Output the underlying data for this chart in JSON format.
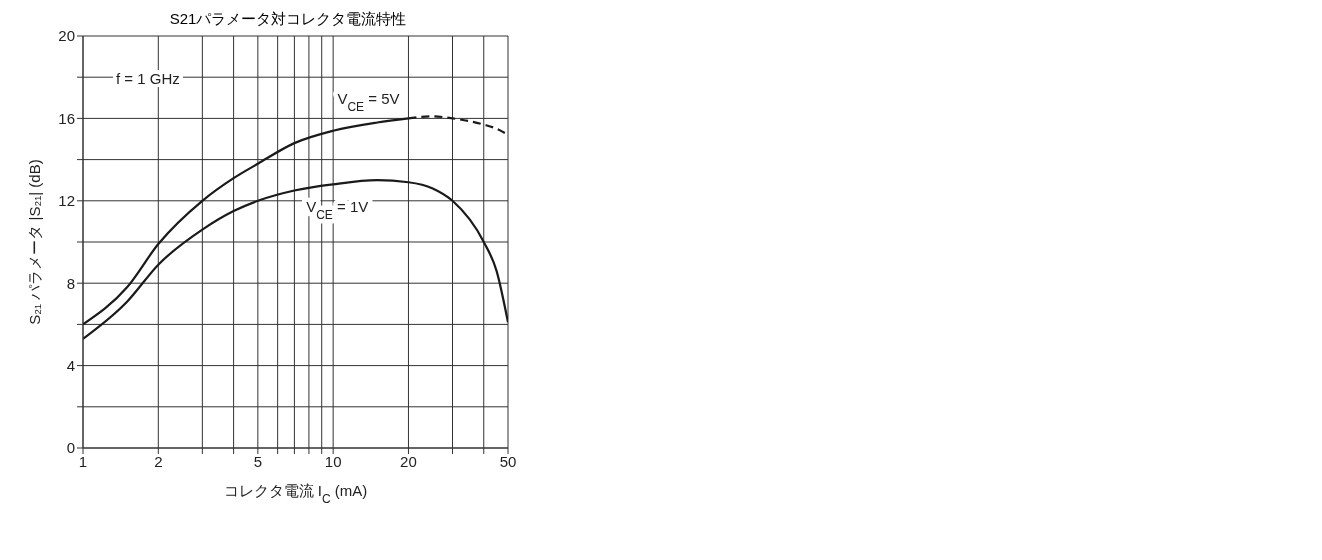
{
  "chart_data": {
    "type": "line",
    "title": "S21パラメータ対コレクタ電流特性",
    "xlabel": "コレクタ電流 I$_{C}$ (mA)",
    "ylabel": "S₂₁ パラメータ |S₂₁| (dB)",
    "annotations": [
      "f = 1 GHz"
    ],
    "x": [
      1,
      1.5,
      2,
      3,
      4,
      5,
      7,
      10,
      15,
      20,
      25,
      30,
      40,
      45,
      50
    ],
    "series": [
      {
        "name": "V$_{CE}$ = 5V",
        "color": "#1a1a1a",
        "line_style": "solid",
        "values": [
          6.0,
          7.8,
          9.9,
          12.0,
          13.1,
          13.8,
          14.8,
          15.4,
          15.8,
          16.0,
          null,
          null,
          null,
          null,
          null
        ]
      },
      {
        "color": "#1a1a1a",
        "line_style": "dashed",
        "values": [
          null,
          null,
          null,
          null,
          null,
          null,
          null,
          null,
          null,
          16.0,
          16.1,
          16.0,
          15.7,
          15.5,
          15.2
        ]
      },
      {
        "name": "V$_{CE}$ = 1V",
        "color": "#1a1a1a",
        "line_style": "solid",
        "values": [
          5.3,
          7.1,
          8.9,
          10.6,
          11.5,
          12.0,
          12.5,
          12.8,
          13.0,
          12.9,
          12.6,
          12.0,
          10.0,
          8.6,
          6.1
        ]
      }
    ],
    "log": "x",
    "xlim": [
      1,
      50
    ],
    "xticks": [
      1,
      2,
      {
        "value": 3,
        "label": null
      },
      {
        "value": 4,
        "label": null
      },
      5,
      {
        "value": 6,
        "label": null
      },
      {
        "value": 7,
        "label": null
      },
      {
        "value": 8,
        "label": null
      },
      {
        "value": 9,
        "label": null
      },
      10,
      20,
      {
        "value": 30,
        "label": null
      },
      {
        "value": 40,
        "label": null
      },
      50
    ],
    "ylim": [
      0,
      20
    ],
    "yticks": [
      0,
      {
        "value": 2,
        "label": null
      },
      4,
      {
        "value": 6,
        "label": null
      },
      8,
      {
        "value": 10,
        "label": null
      },
      12,
      {
        "value": 14,
        "label": null
      },
      16,
      {
        "value": 18,
        "label": null
      },
      20
    ],
    "grid": true,
    "marker": "none"
  }
}
